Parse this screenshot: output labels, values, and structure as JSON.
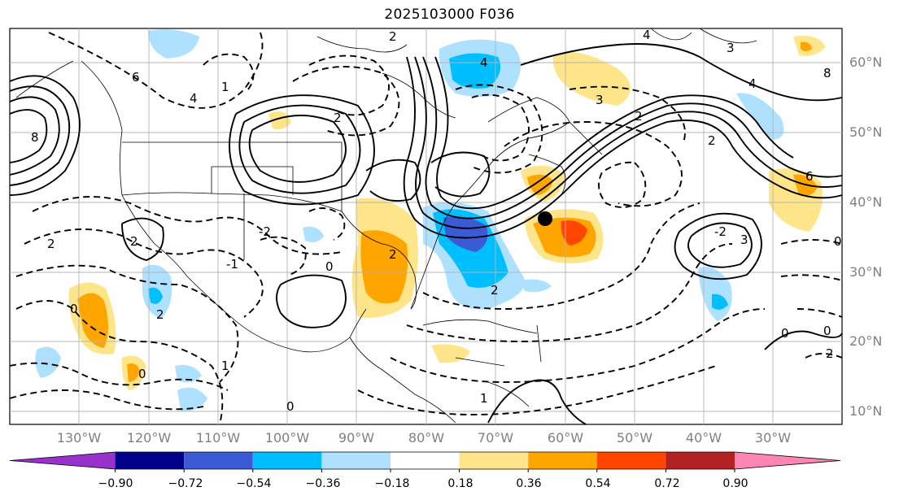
{
  "title": "2025103000 F036",
  "map": {
    "lat_labels": [
      "60°N",
      "50°N",
      "40°N",
      "30°N",
      "20°N",
      "10°N"
    ],
    "lon_labels": [
      "130°W",
      "120°W",
      "110°W",
      "100°W",
      "90°W",
      "80°W",
      "70°W",
      "60°W",
      "50°W",
      "40°W",
      "30°W"
    ],
    "contour_labels": [
      "4",
      "4",
      "3",
      "8",
      "6",
      "4",
      "2",
      "2",
      "2",
      "1",
      "0",
      "-1",
      "-2",
      "0",
      "0",
      "0",
      "1",
      "2",
      "2",
      "0",
      "-2",
      "4",
      "8",
      "6",
      "2",
      "3",
      "3",
      "2",
      "0",
      "2",
      "0",
      "1",
      "2",
      "2"
    ],
    "marker": "black dot",
    "label_color": "#808080"
  },
  "colorbar": {
    "tick_labels": [
      "−0.90",
      "−0.72",
      "−0.54",
      "−0.36",
      "−0.18",
      "0.18",
      "0.36",
      "0.54",
      "0.72",
      "0.90"
    ],
    "colors": [
      "#9932cc",
      "#00008b",
      "#3b5bd6",
      "#00bfff",
      "#aee0ff",
      "#ffffff",
      "#ffe58a",
      "#ffa500",
      "#ff4500",
      "#b22222",
      "#ff85b4"
    ],
    "extend": "both"
  }
}
